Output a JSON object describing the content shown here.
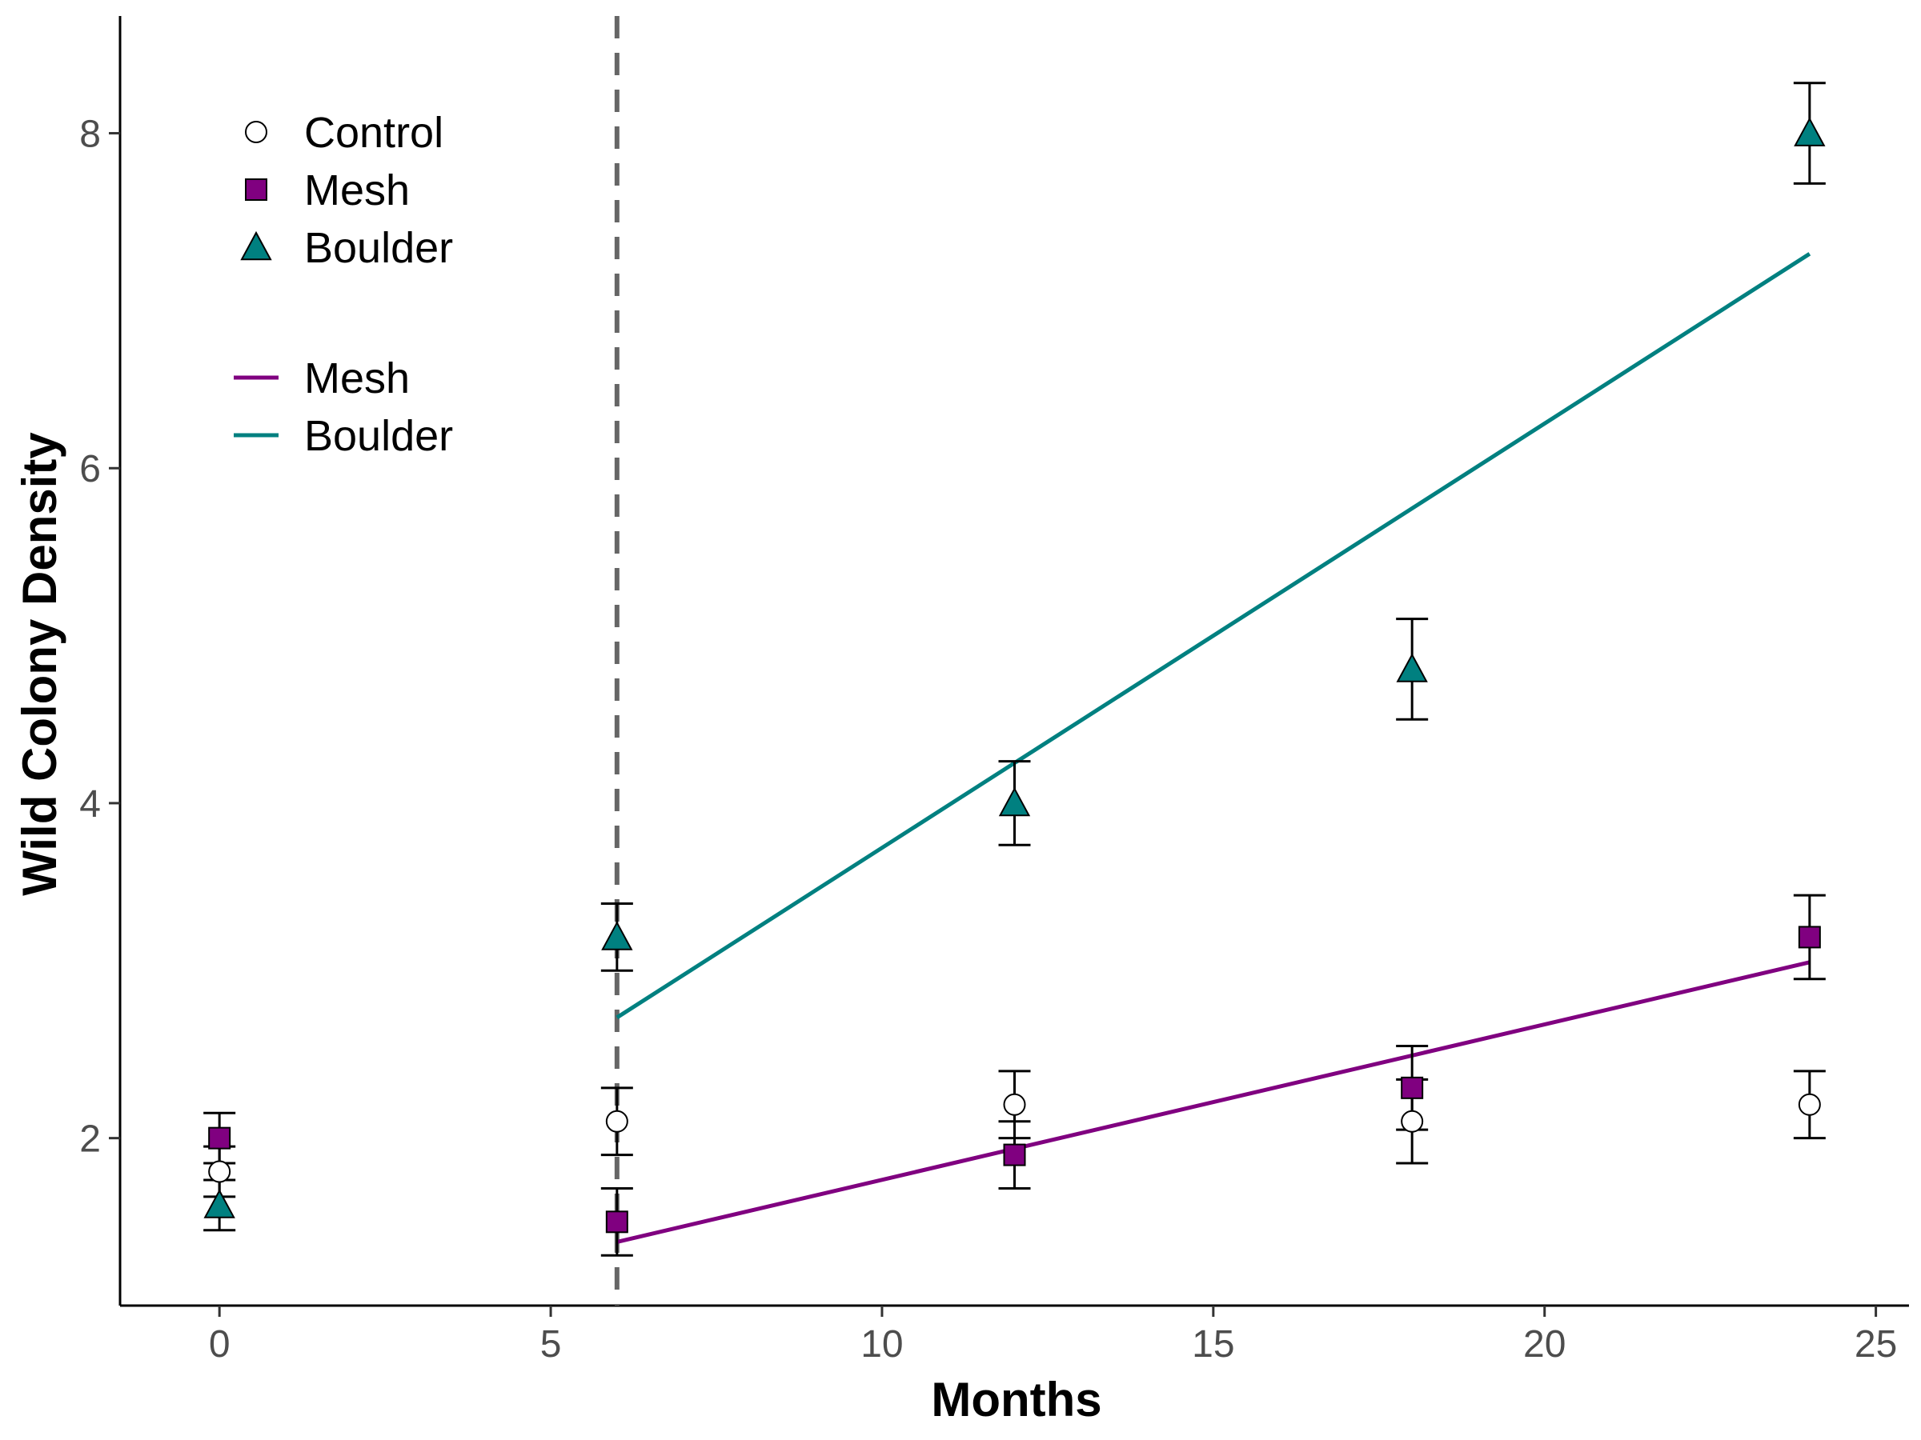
{
  "chart_data": {
    "type": "scatter",
    "xlabel": "Months",
    "ylabel": "Wild Colony Density",
    "xlim": [
      -1.5,
      25.5
    ],
    "ylim": [
      1.0,
      8.7
    ],
    "x_ticks": [
      0,
      5,
      10,
      15,
      20,
      25
    ],
    "y_ticks": [
      2,
      4,
      6,
      8
    ],
    "grid": false,
    "vline": {
      "x": 6,
      "style": "dashed",
      "color": "#666666"
    },
    "series": [
      {
        "name": "Control",
        "marker": "circle",
        "fill": "#ffffff",
        "x": [
          0,
          6,
          12,
          18,
          24
        ],
        "y": [
          1.8,
          2.1,
          2.2,
          2.1,
          2.2
        ],
        "err": [
          0.15,
          0.2,
          0.2,
          0.25,
          0.2
        ]
      },
      {
        "name": "Mesh",
        "marker": "square",
        "fill": "#800080",
        "x": [
          0,
          6,
          12,
          18,
          24
        ],
        "y": [
          2.0,
          1.5,
          1.9,
          2.3,
          3.2
        ],
        "err": [
          0.15,
          0.2,
          0.2,
          0.25,
          0.25
        ]
      },
      {
        "name": "Boulder",
        "marker": "triangle",
        "fill": "#008080",
        "x": [
          0,
          6,
          12,
          18,
          24
        ],
        "y": [
          1.6,
          3.2,
          4.0,
          4.8,
          8.0
        ],
        "err": [
          0.15,
          0.2,
          0.25,
          0.3,
          0.3
        ]
      }
    ],
    "trend_lines": [
      {
        "name": "Mesh",
        "color": "#800080",
        "x": [
          6,
          24
        ],
        "y": [
          1.38,
          3.05
        ]
      },
      {
        "name": "Boulder",
        "color": "#008080",
        "x": [
          6,
          24
        ],
        "y": [
          2.72,
          7.28
        ]
      }
    ],
    "legend": {
      "placement": "top-left",
      "points": [
        "Control",
        "Mesh",
        "Boulder"
      ],
      "lines": [
        "Mesh",
        "Boulder"
      ]
    }
  }
}
